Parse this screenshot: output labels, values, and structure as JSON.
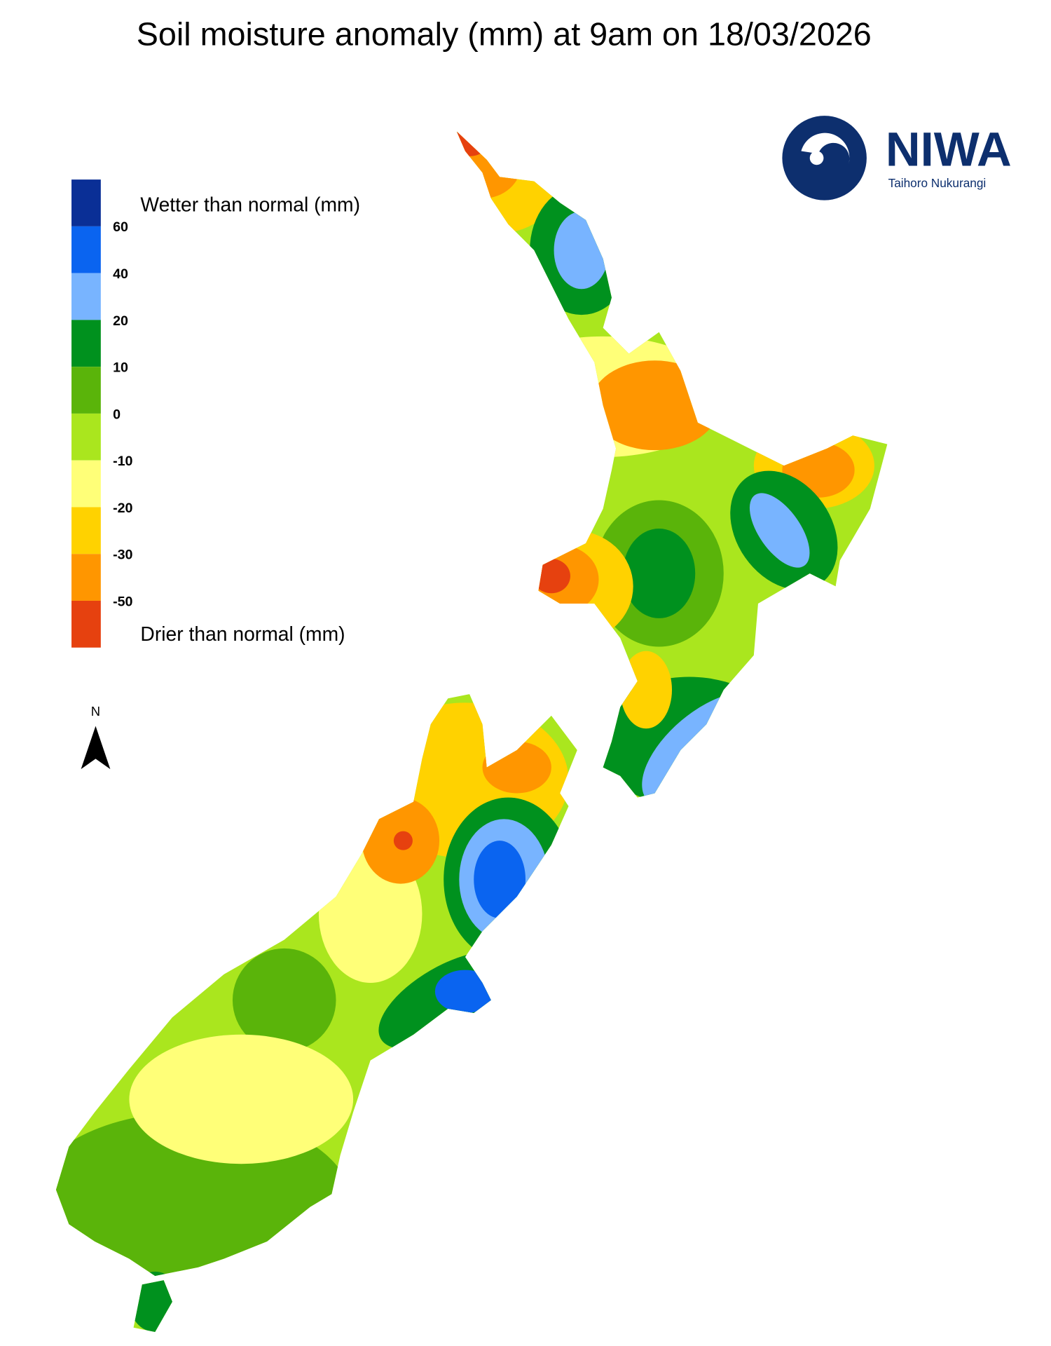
{
  "title": "Soil moisture anomaly (mm) at 9am on 18/03/2026",
  "legend": {
    "colors": [
      "#0a2f96",
      "#0a64f0",
      "#78b4ff",
      "#00911e",
      "#5ab40a",
      "#aae61e",
      "#ffff78",
      "#ffd200",
      "#ff9600",
      "#e6410f"
    ],
    "ticks": [
      60,
      40,
      20,
      10,
      0,
      -10,
      -20,
      -30,
      -50
    ],
    "wetter_label": "Wetter than normal (mm)",
    "drier_label": "Drier than normal (mm)"
  },
  "north_arrow": "N",
  "logo": {
    "name": "NIWA",
    "subtitle": "Taihoro Nukurangi"
  }
}
